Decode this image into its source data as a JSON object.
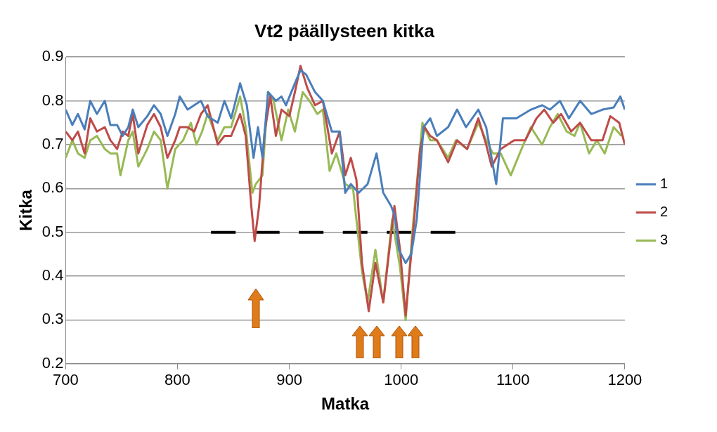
{
  "chart_data": {
    "type": "line",
    "title": "Vt2 päällysteen kitka",
    "xlabel": "Matka",
    "ylabel": "Kitka",
    "xlim": [
      700,
      1200
    ],
    "xticks": [
      700,
      800,
      900,
      1000,
      1100,
      1200
    ],
    "ylim": [
      0.2,
      0.9
    ],
    "yticks": [
      0.2,
      0.3,
      0.4,
      0.5,
      0.6,
      0.7,
      0.8,
      0.9
    ],
    "grid": "y",
    "legend": "right",
    "marker": "none",
    "line_style": "solid",
    "series": [
      {
        "name": "1",
        "color": "#4a7ebb",
        "x": [
          700,
          706,
          711,
          717,
          722,
          728,
          735,
          740,
          746,
          751,
          756,
          760,
          765,
          773,
          779,
          785,
          791,
          798,
          802,
          809,
          815,
          821,
          827,
          836,
          842,
          848,
          856,
          862,
          868,
          872,
          876,
          881,
          888,
          893,
          897,
          905,
          910,
          915,
          923,
          930,
          938,
          945,
          950,
          955,
          962,
          970,
          978,
          984,
          991,
          994,
          998,
          1004,
          1009,
          1014,
          1020,
          1026,
          1032,
          1042,
          1050,
          1058,
          1069,
          1076,
          1085,
          1091,
          1103,
          1116,
          1126,
          1133,
          1142,
          1150,
          1160,
          1170,
          1180,
          1190,
          1196,
          1200
        ],
        "values": [
          0.78,
          0.745,
          0.77,
          0.735,
          0.8,
          0.77,
          0.8,
          0.745,
          0.745,
          0.72,
          0.74,
          0.78,
          0.74,
          0.765,
          0.79,
          0.77,
          0.72,
          0.77,
          0.81,
          0.78,
          0.79,
          0.8,
          0.765,
          0.75,
          0.8,
          0.76,
          0.84,
          0.79,
          0.67,
          0.74,
          0.67,
          0.82,
          0.8,
          0.81,
          0.79,
          0.84,
          0.87,
          0.86,
          0.82,
          0.8,
          0.73,
          0.73,
          0.59,
          0.61,
          0.59,
          0.61,
          0.68,
          0.59,
          0.56,
          0.54,
          0.46,
          0.43,
          0.45,
          0.53,
          0.74,
          0.76,
          0.72,
          0.74,
          0.78,
          0.74,
          0.78,
          0.74,
          0.61,
          0.76,
          0.76,
          0.78,
          0.79,
          0.78,
          0.8,
          0.76,
          0.8,
          0.77,
          0.78,
          0.785,
          0.81,
          0.78
        ]
      },
      {
        "name": "2",
        "color": "#be4b48",
        "x": [
          700,
          706,
          711,
          717,
          722,
          728,
          735,
          740,
          746,
          751,
          756,
          760,
          765,
          773,
          779,
          785,
          791,
          798,
          802,
          809,
          815,
          821,
          827,
          836,
          842,
          848,
          856,
          861,
          866,
          869,
          873,
          878,
          883,
          888,
          893,
          900,
          905,
          910,
          916,
          923,
          930,
          938,
          945,
          950,
          955,
          960,
          965,
          971,
          977,
          984,
          994,
          999,
          1004,
          1009,
          1017,
          1021,
          1026,
          1032,
          1042,
          1050,
          1059,
          1069,
          1076,
          1081,
          1089,
          1101,
          1111,
          1121,
          1128,
          1136,
          1143,
          1152,
          1160,
          1170,
          1180,
          1187,
          1195,
          1200
        ],
        "values": [
          0.73,
          0.71,
          0.73,
          0.68,
          0.76,
          0.73,
          0.74,
          0.71,
          0.69,
          0.73,
          0.72,
          0.77,
          0.68,
          0.745,
          0.77,
          0.74,
          0.67,
          0.71,
          0.74,
          0.74,
          0.73,
          0.77,
          0.79,
          0.7,
          0.72,
          0.72,
          0.77,
          0.72,
          0.56,
          0.48,
          0.56,
          0.73,
          0.81,
          0.72,
          0.78,
          0.765,
          0.82,
          0.88,
          0.83,
          0.79,
          0.8,
          0.68,
          0.73,
          0.63,
          0.67,
          0.62,
          0.43,
          0.32,
          0.43,
          0.34,
          0.56,
          0.46,
          0.31,
          0.45,
          0.69,
          0.74,
          0.72,
          0.71,
          0.66,
          0.71,
          0.69,
          0.76,
          0.7,
          0.65,
          0.69,
          0.71,
          0.71,
          0.76,
          0.78,
          0.75,
          0.77,
          0.73,
          0.75,
          0.71,
          0.71,
          0.765,
          0.75,
          0.7
        ]
      },
      {
        "name": "3",
        "color": "#98b954",
        "x": [
          700,
          706,
          711,
          717,
          722,
          728,
          735,
          740,
          746,
          749,
          756,
          760,
          765,
          773,
          779,
          785,
          791,
          798,
          805,
          812,
          817,
          822,
          827,
          836,
          842,
          848,
          856,
          861,
          867,
          870,
          876,
          881,
          886,
          893,
          899,
          905,
          912,
          918,
          925,
          930,
          936,
          942,
          950,
          957,
          965,
          970,
          977,
          984,
          992,
          999,
          1004,
          1010,
          1019,
          1026,
          1032,
          1042,
          1049,
          1059,
          1069,
          1076,
          1082,
          1089,
          1098,
          1106,
          1116,
          1126,
          1133,
          1140,
          1148,
          1155,
          1160,
          1168,
          1175,
          1182,
          1190,
          1197
        ],
        "values": [
          0.67,
          0.71,
          0.68,
          0.67,
          0.71,
          0.72,
          0.69,
          0.68,
          0.68,
          0.63,
          0.71,
          0.73,
          0.65,
          0.69,
          0.73,
          0.71,
          0.6,
          0.69,
          0.71,
          0.75,
          0.7,
          0.73,
          0.77,
          0.71,
          0.74,
          0.74,
          0.81,
          0.74,
          0.59,
          0.61,
          0.63,
          0.82,
          0.8,
          0.71,
          0.78,
          0.73,
          0.82,
          0.8,
          0.77,
          0.78,
          0.64,
          0.68,
          0.61,
          0.6,
          0.41,
          0.34,
          0.46,
          0.34,
          0.53,
          0.42,
          0.3,
          0.5,
          0.75,
          0.71,
          0.71,
          0.67,
          0.71,
          0.69,
          0.75,
          0.71,
          0.68,
          0.68,
          0.63,
          0.68,
          0.74,
          0.7,
          0.74,
          0.77,
          0.73,
          0.72,
          0.75,
          0.68,
          0.71,
          0.68,
          0.74,
          0.72
        ]
      },
      {
        "color": "#000000",
        "line_style": "dashed",
        "x": [
          830,
          1050
        ],
        "values": [
          0.5,
          0.5
        ]
      }
    ]
  }
}
